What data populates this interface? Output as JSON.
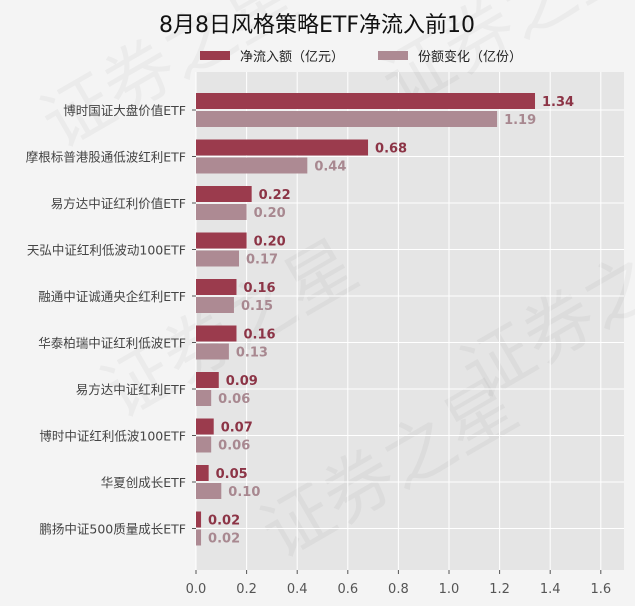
{
  "chart_data": {
    "type": "bar",
    "orientation": "horizontal",
    "title": "8月8日风格策略ETF净流入前10",
    "categories": [
      "博时国证大盘价值ETF",
      "摩根标普港股通低波红利ETF",
      "易方达中证红利价值ETF",
      "天弘中证红利低波动100ETF",
      "融通中证诚通央企红利ETF",
      "华泰柏瑞中证红利低波ETF",
      "易方达中证红利ETF",
      "博时中证红利低波100ETF",
      "华夏创成长ETF",
      "鹏扬中证500质量成长ETF"
    ],
    "series": [
      {
        "name": "净流入额（亿元）",
        "color": "#9b3b4d",
        "label_color": "#8c3446",
        "values": [
          1.34,
          0.68,
          0.22,
          0.2,
          0.16,
          0.16,
          0.09,
          0.07,
          0.05,
          0.02
        ]
      },
      {
        "name": "份额变化（亿份）",
        "color": "#ad8a93",
        "label_color": "#a88890",
        "values": [
          1.19,
          0.44,
          0.2,
          0.17,
          0.15,
          0.13,
          0.06,
          0.06,
          0.1,
          0.02
        ]
      }
    ],
    "xlim": [
      0,
      1.7
    ],
    "xticks": [
      "0.0",
      "0.2",
      "0.4",
      "0.6",
      "0.8",
      "1.0",
      "1.2",
      "1.4",
      "1.6"
    ],
    "xlabel": "",
    "ylabel": "",
    "grid": true,
    "legend_position": "top",
    "plot_background": "#e5e5e5",
    "watermark": "证券之星"
  }
}
